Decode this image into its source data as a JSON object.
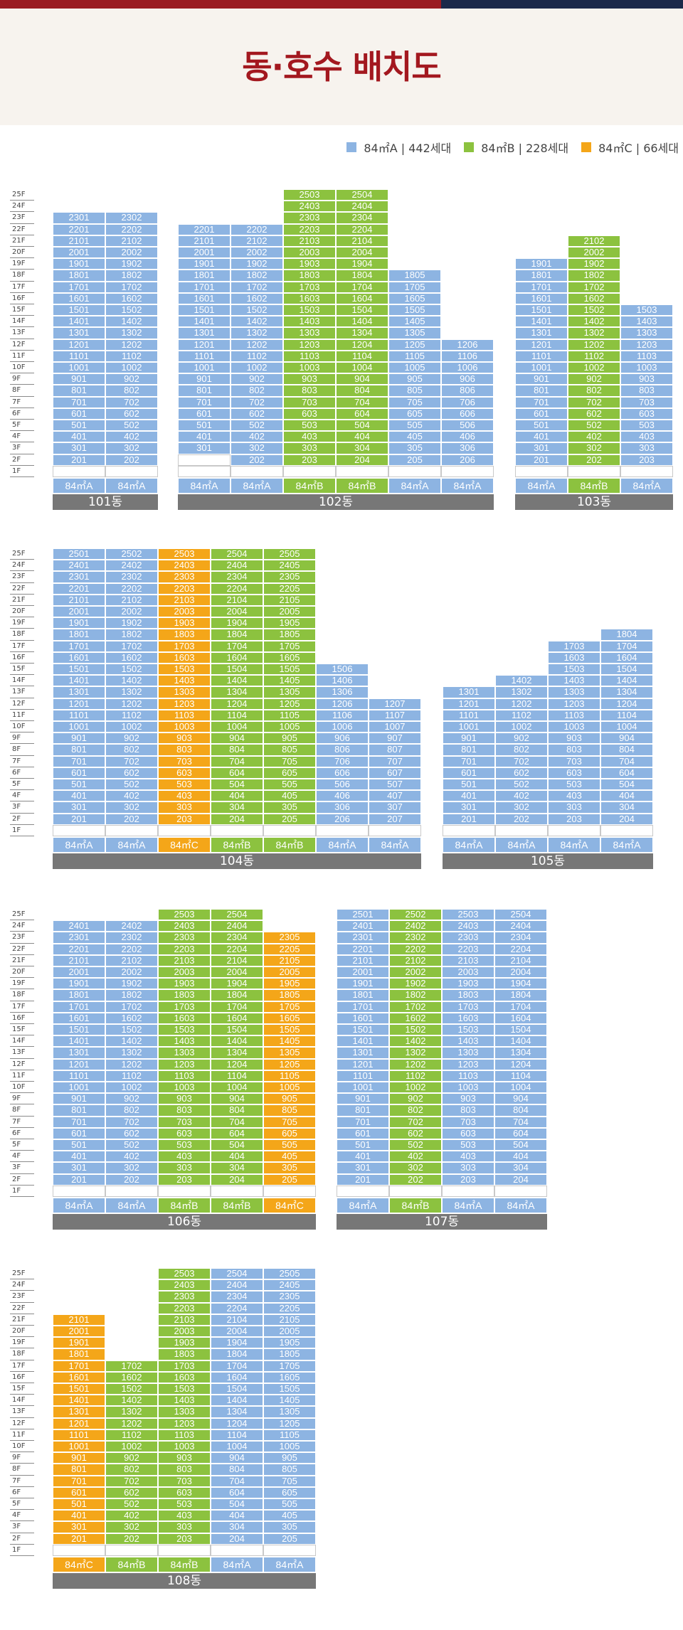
{
  "title": "동·호수 배치도",
  "legend": [
    {
      "label": "84㎡A | 442세대",
      "color": "#8db4e2"
    },
    {
      "label": "84㎡B | 228세대",
      "color": "#8cc23f"
    },
    {
      "label": "84㎡C | 66세대",
      "color": "#f4a619"
    }
  ],
  "colors": {
    "A": "#8db4e2",
    "B": "#8cc23f",
    "C": "#f4a619"
  },
  "floor_labels": [
    "25F",
    "24F",
    "23F",
    "22F",
    "21F",
    "20F",
    "19F",
    "18F",
    "17F",
    "16F",
    "15F",
    "14F",
    "13F",
    "12F",
    "11F",
    "10F",
    "9F",
    "8F",
    "7F",
    "6F",
    "5F",
    "4F",
    "3F",
    "2F",
    "1F"
  ],
  "buildings": [
    {
      "name": "101동",
      "columns": [
        {
          "line": "01",
          "type": "A",
          "type_label": "84㎡A",
          "top": 23,
          "bottom": 2
        },
        {
          "line": "02",
          "type": "A",
          "type_label": "84㎡A",
          "top": 23,
          "bottom": 2
        }
      ]
    },
    {
      "name": "102동",
      "columns": [
        {
          "line": "01",
          "type": "A",
          "type_label": "84㎡A",
          "top": 22,
          "bottom": 3
        },
        {
          "line": "02",
          "type": "A",
          "type_label": "84㎡A",
          "top": 22,
          "bottom": 2
        },
        {
          "line": "03",
          "type": "B",
          "type_label": "84㎡B",
          "top": 25,
          "bottom": 2
        },
        {
          "line": "04",
          "type": "B",
          "type_label": "84㎡B",
          "top": 25,
          "bottom": 2
        },
        {
          "line": "05",
          "type": "A",
          "type_label": "84㎡A",
          "top": 18,
          "bottom": 2
        },
        {
          "line": "06",
          "type": "A",
          "type_label": "84㎡A",
          "top": 12,
          "bottom": 2
        }
      ]
    },
    {
      "name": "103동",
      "columns": [
        {
          "line": "01",
          "type": "A",
          "type_label": "84㎡A",
          "top": 19,
          "bottom": 2
        },
        {
          "line": "02",
          "type": "B",
          "type_label": "84㎡B",
          "top": 21,
          "bottom": 2
        },
        {
          "line": "03",
          "type": "A",
          "type_label": "84㎡A",
          "top": 15,
          "bottom": 2
        }
      ]
    },
    {
      "name": "104동",
      "columns": [
        {
          "line": "01",
          "type": "A",
          "type_label": "84㎡A",
          "top": 25,
          "bottom": 2
        },
        {
          "line": "02",
          "type": "A",
          "type_label": "84㎡A",
          "top": 25,
          "bottom": 2
        },
        {
          "line": "03",
          "type": "C",
          "type_label": "84㎡C",
          "top": 25,
          "bottom": 2
        },
        {
          "line": "04",
          "type": "B",
          "type_label": "84㎡B",
          "top": 25,
          "bottom": 2
        },
        {
          "line": "05",
          "type": "B",
          "type_label": "84㎡B",
          "top": 25,
          "bottom": 2
        },
        {
          "line": "06",
          "type": "A",
          "type_label": "84㎡A",
          "top": 15,
          "bottom": 2
        },
        {
          "line": "07",
          "type": "A",
          "type_label": "84㎡A",
          "top": 12,
          "bottom": 2
        }
      ]
    },
    {
      "name": "105동",
      "columns": [
        {
          "line": "01",
          "type": "A",
          "type_label": "84㎡A",
          "top": 13,
          "bottom": 2
        },
        {
          "line": "02",
          "type": "A",
          "type_label": "84㎡A",
          "top": 14,
          "bottom": 2
        },
        {
          "line": "03",
          "type": "A",
          "type_label": "84㎡A",
          "top": 17,
          "bottom": 2
        },
        {
          "line": "04",
          "type": "A",
          "type_label": "84㎡A",
          "top": 18,
          "bottom": 2
        }
      ]
    },
    {
      "name": "106동",
      "columns": [
        {
          "line": "01",
          "type": "A",
          "type_label": "84㎡A",
          "top": 24,
          "bottom": 2
        },
        {
          "line": "02",
          "type": "A",
          "type_label": "84㎡A",
          "top": 24,
          "bottom": 2
        },
        {
          "line": "03",
          "type": "B",
          "type_label": "84㎡B",
          "top": 25,
          "bottom": 2
        },
        {
          "line": "04",
          "type": "B",
          "type_label": "84㎡B",
          "top": 25,
          "bottom": 2
        },
        {
          "line": "05",
          "type": "C",
          "type_label": "84㎡C",
          "top": 23,
          "bottom": 2
        }
      ]
    },
    {
      "name": "107동",
      "columns": [
        {
          "line": "01",
          "type": "A",
          "type_label": "84㎡A",
          "top": 25,
          "bottom": 2
        },
        {
          "line": "02",
          "type": "B",
          "type_label": "84㎡B",
          "top": 25,
          "bottom": 2
        },
        {
          "line": "03",
          "type": "A",
          "type_label": "84㎡A",
          "top": 25,
          "bottom": 2
        },
        {
          "line": "04",
          "type": "A",
          "type_label": "84㎡A",
          "top": 25,
          "bottom": 2
        }
      ]
    },
    {
      "name": "108동",
      "columns": [
        {
          "line": "01",
          "type": "C",
          "type_label": "84㎡C",
          "top": 21,
          "bottom": 2
        },
        {
          "line": "02",
          "type": "B",
          "type_label": "84㎡B",
          "top": 17,
          "bottom": 2
        },
        {
          "line": "03",
          "type": "B",
          "type_label": "84㎡B",
          "top": 25,
          "bottom": 2
        },
        {
          "line": "04",
          "type": "A",
          "type_label": "84㎡A",
          "top": 25,
          "bottom": 2
        },
        {
          "line": "05",
          "type": "A",
          "type_label": "84㎡A",
          "top": 25,
          "bottom": 2
        }
      ]
    }
  ]
}
